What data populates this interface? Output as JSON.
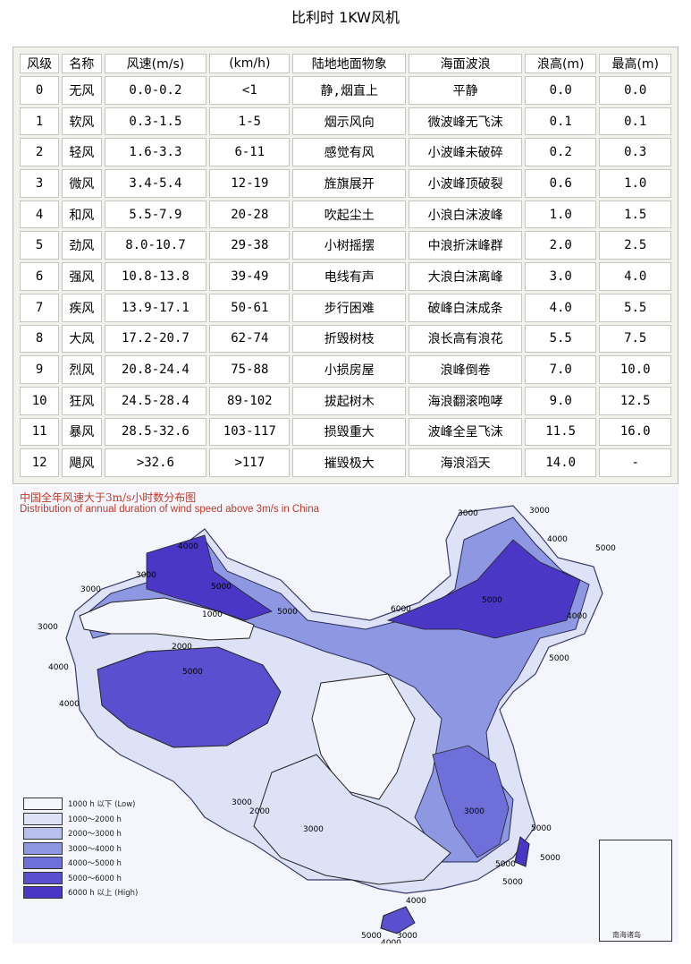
{
  "page_title": "比利时    1KW风机",
  "table": {
    "headers": [
      "风级",
      "名称",
      "风速(m/s)",
      "(km/h)",
      "陆地地面物象",
      "海面波浪",
      "浪高(m)",
      "最高(m)"
    ],
    "rows": [
      [
        "0",
        "无风",
        "0.0-0.2",
        "<1",
        "静,烟直上",
        "平静",
        "0.0",
        "0.0"
      ],
      [
        "1",
        "软风",
        "0.3-1.5",
        "1-5",
        "烟示风向",
        "微波峰无飞沫",
        "0.1",
        "0.1"
      ],
      [
        "2",
        "轻风",
        "1.6-3.3",
        "6-11",
        "感觉有风",
        "小波峰未破碎",
        "0.2",
        "0.3"
      ],
      [
        "3",
        "微风",
        "3.4-5.4",
        "12-19",
        "旌旗展开",
        "小波峰顶破裂",
        "0.6",
        "1.0"
      ],
      [
        "4",
        "和风",
        "5.5-7.9",
        "20-28",
        "吹起尘土",
        "小浪白沫波峰",
        "1.0",
        "1.5"
      ],
      [
        "5",
        "劲风",
        "8.0-10.7",
        "29-38",
        "小树摇摆",
        "中浪折沫峰群",
        "2.0",
        "2.5"
      ],
      [
        "6",
        "强风",
        "10.8-13.8",
        "39-49",
        "电线有声",
        "大浪白沫离峰",
        "3.0",
        "4.0"
      ],
      [
        "7",
        "疾风",
        "13.9-17.1",
        "50-61",
        "步行困难",
        "破峰白沫成条",
        "4.0",
        "5.5"
      ],
      [
        "8",
        "大风",
        "17.2-20.7",
        "62-74",
        "折毁树枝",
        "浪长高有浪花",
        "5.5",
        "7.5"
      ],
      [
        "9",
        "烈风",
        "20.8-24.4",
        "75-88",
        "小损房屋",
        "浪峰倒卷",
        "7.0",
        "10.0"
      ],
      [
        "10",
        "狂风",
        "24.5-28.4",
        "89-102",
        "拔起树木",
        "海浪翻滚咆哮",
        "9.0",
        "12.5"
      ],
      [
        "11",
        "暴风",
        "28.5-32.6",
        "103-117",
        "损毁重大",
        "波峰全呈飞沫",
        "11.5",
        "16.0"
      ],
      [
        "12",
        "飓风",
        ">32.6",
        ">117",
        "摧毁极大",
        "海浪滔天",
        "14.0",
        "-"
      ]
    ]
  },
  "map": {
    "title_cn": "中国全年风速大于3m/s小时数分布图",
    "title_en": "Distribution of annual duration of wind speed above 3m/s in China",
    "legend": [
      {
        "label": "1000 h 以下 (Low)",
        "color": "#f6f7fd"
      },
      {
        "label": "1000～2000 h",
        "color": "#dde2f6"
      },
      {
        "label": "2000～3000 h",
        "color": "#b8c1ee"
      },
      {
        "label": "3000～4000 h",
        "color": "#8e98e2"
      },
      {
        "label": "4000～5000 h",
        "color": "#6e6fd8"
      },
      {
        "label": "5000～6000 h",
        "color": "#5a4fcf"
      },
      {
        "label": "6000 h 以上 (High)",
        "color": "#4b37c6"
      }
    ],
    "contour_labels": {
      "l1000": "1000",
      "l2000": "2000",
      "l3000": "3000",
      "l4000": "4000",
      "l5000": "5000",
      "l6000": "6000"
    },
    "inset_label": "南海诸岛"
  }
}
